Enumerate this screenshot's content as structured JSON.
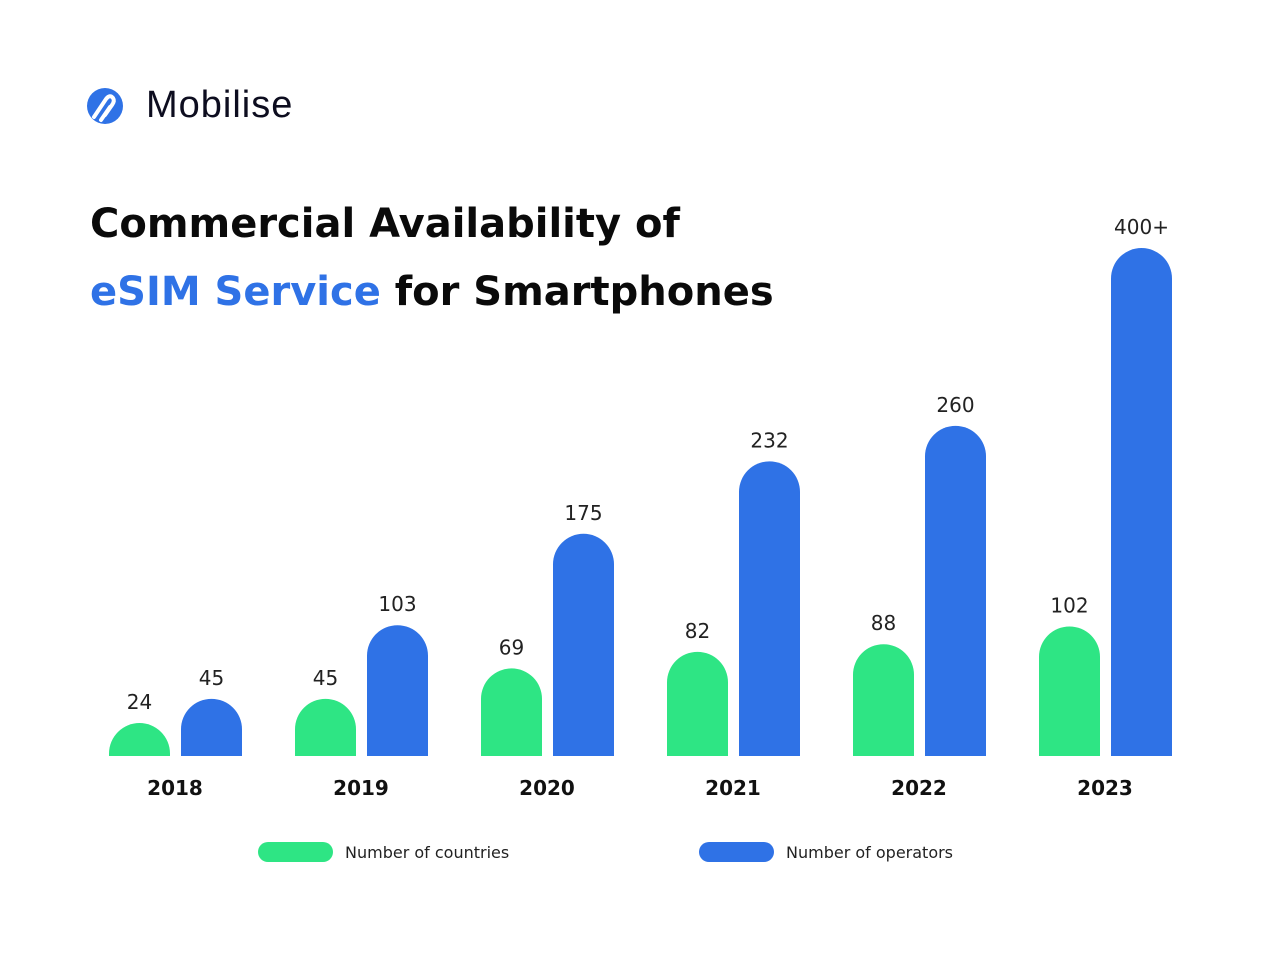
{
  "brand": {
    "name": "Mobilise",
    "logo_icon": "mobilise-logo-icon"
  },
  "title": {
    "line1": "Commercial Availability of",
    "line2_accent": "eSIM Service",
    "line2_rest": " for Smartphones"
  },
  "colors": {
    "countries": "#2ee584",
    "operators": "#2f72e6",
    "accent": "#2f72e6"
  },
  "chart_data": {
    "type": "bar",
    "title": "Commercial Availability of eSIM Service for Smartphones",
    "categories": [
      "2018",
      "2019",
      "2020",
      "2021",
      "2022",
      "2023"
    ],
    "series": [
      {
        "name": "Number of countries",
        "values": [
          24,
          45,
          69,
          82,
          88,
          102
        ],
        "labels": [
          "24",
          "45",
          "69",
          "82",
          "88",
          "102"
        ]
      },
      {
        "name": "Number of operators",
        "values": [
          45,
          103,
          175,
          232,
          260,
          400
        ],
        "labels": [
          "45",
          "103",
          "175",
          "232",
          "260",
          "400+"
        ]
      }
    ],
    "xlabel": "",
    "ylabel": "",
    "grid": false,
    "legend_position": "bottom"
  }
}
